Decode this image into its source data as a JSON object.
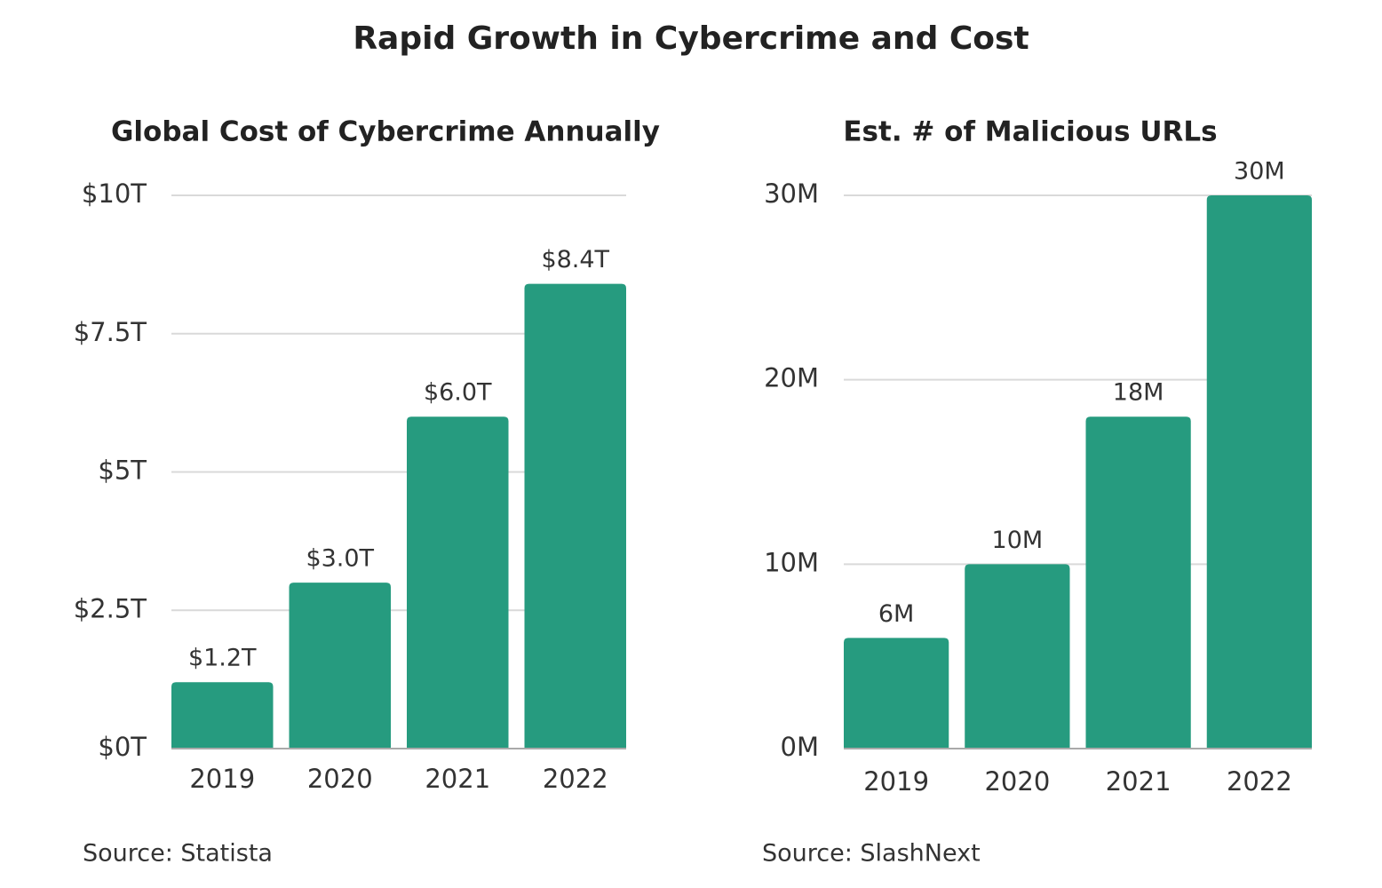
{
  "title": "Rapid Growth in Cybercrime and Cost",
  "chart_data": [
    {
      "type": "bar",
      "title": "Global Cost of Cybercrime Annually",
      "categories": [
        "2019",
        "2020",
        "2021",
        "2022"
      ],
      "values": [
        1.2,
        3.0,
        6.0,
        8.4
      ],
      "value_labels": [
        "$1.2T",
        "$3.0T",
        "$6.0T",
        "$8.4T"
      ],
      "color": "#269b7f",
      "ylim": [
        0,
        10
      ],
      "yticks": [
        {
          "value": 0,
          "label": "$0T"
        },
        {
          "value": 2.5,
          "label": "$2.5T"
        },
        {
          "value": 5,
          "label": "$5T"
        },
        {
          "value": 7.5,
          "label": "$7.5T"
        },
        {
          "value": 10,
          "label": "$10T"
        }
      ],
      "grid": true,
      "source": "Source: Statista"
    },
    {
      "type": "bar",
      "title": "Est. # of Malicious URLs",
      "categories": [
        "2019",
        "2020",
        "2021",
        "2022"
      ],
      "values": [
        6,
        10,
        18,
        30
      ],
      "value_labels": [
        "6M",
        "10M",
        "18M",
        "30M"
      ],
      "color": "#269b7f",
      "ylim": [
        0,
        30
      ],
      "yticks": [
        {
          "value": 0,
          "label": "0M"
        },
        {
          "value": 10,
          "label": "10M"
        },
        {
          "value": 20,
          "label": "20M"
        },
        {
          "value": 30,
          "label": "30M"
        }
      ],
      "grid": true,
      "source": "Source: SlashNext"
    }
  ]
}
